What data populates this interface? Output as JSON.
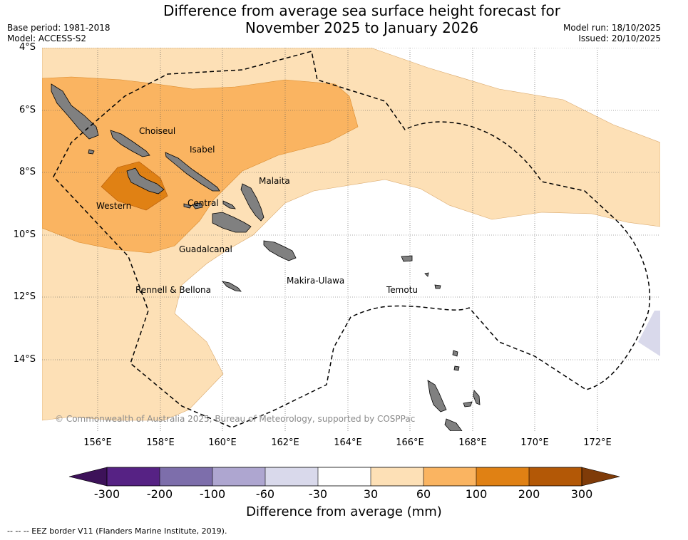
{
  "title": {
    "line1": "Difference from average sea surface height forecast for",
    "line2": "November 2025 to January 2026"
  },
  "meta_left": {
    "base_period": "Base period: 1981-2018",
    "model": "Model: ACCESS-S2"
  },
  "meta_right": {
    "model_run": "Model run: 18/10/2025",
    "issued": "Issued: 20/10/2025"
  },
  "axes": {
    "lat_labels": [
      "4°S",
      "6°S",
      "8°S",
      "10°S",
      "12°S",
      "14°S"
    ],
    "lon_labels": [
      "156°E",
      "158°E",
      "160°E",
      "162°E",
      "164°E",
      "166°E",
      "168°E",
      "170°E",
      "172°E"
    ]
  },
  "provinces": [
    "Choiseul",
    "Isabel",
    "Malaita",
    "Western",
    "Central",
    "Guadalcanal",
    "Rennell & Bellona",
    "Makira-Ulawa",
    "Temotu"
  ],
  "copyright": "© Commonwealth of Australia 2025, Bureau of Meteorology, supported by COSPPac",
  "colorbar": {
    "title": "Difference from average (mm)",
    "ticks": [
      "-300",
      "-200",
      "-100",
      "-60",
      "-30",
      "30",
      "60",
      "100",
      "200",
      "300"
    ],
    "colors": [
      "#3d1259",
      "#562284",
      "#7d6eab",
      "#aea6d0",
      "#d9d9eb",
      "#ffffff",
      "#fde0b6",
      "#fab461",
      "#e08114",
      "#b35806",
      "#7f3b08"
    ]
  },
  "footnote": "--  --  -- EEZ border V11 (Flanders Marine Institute, 2019)."
}
